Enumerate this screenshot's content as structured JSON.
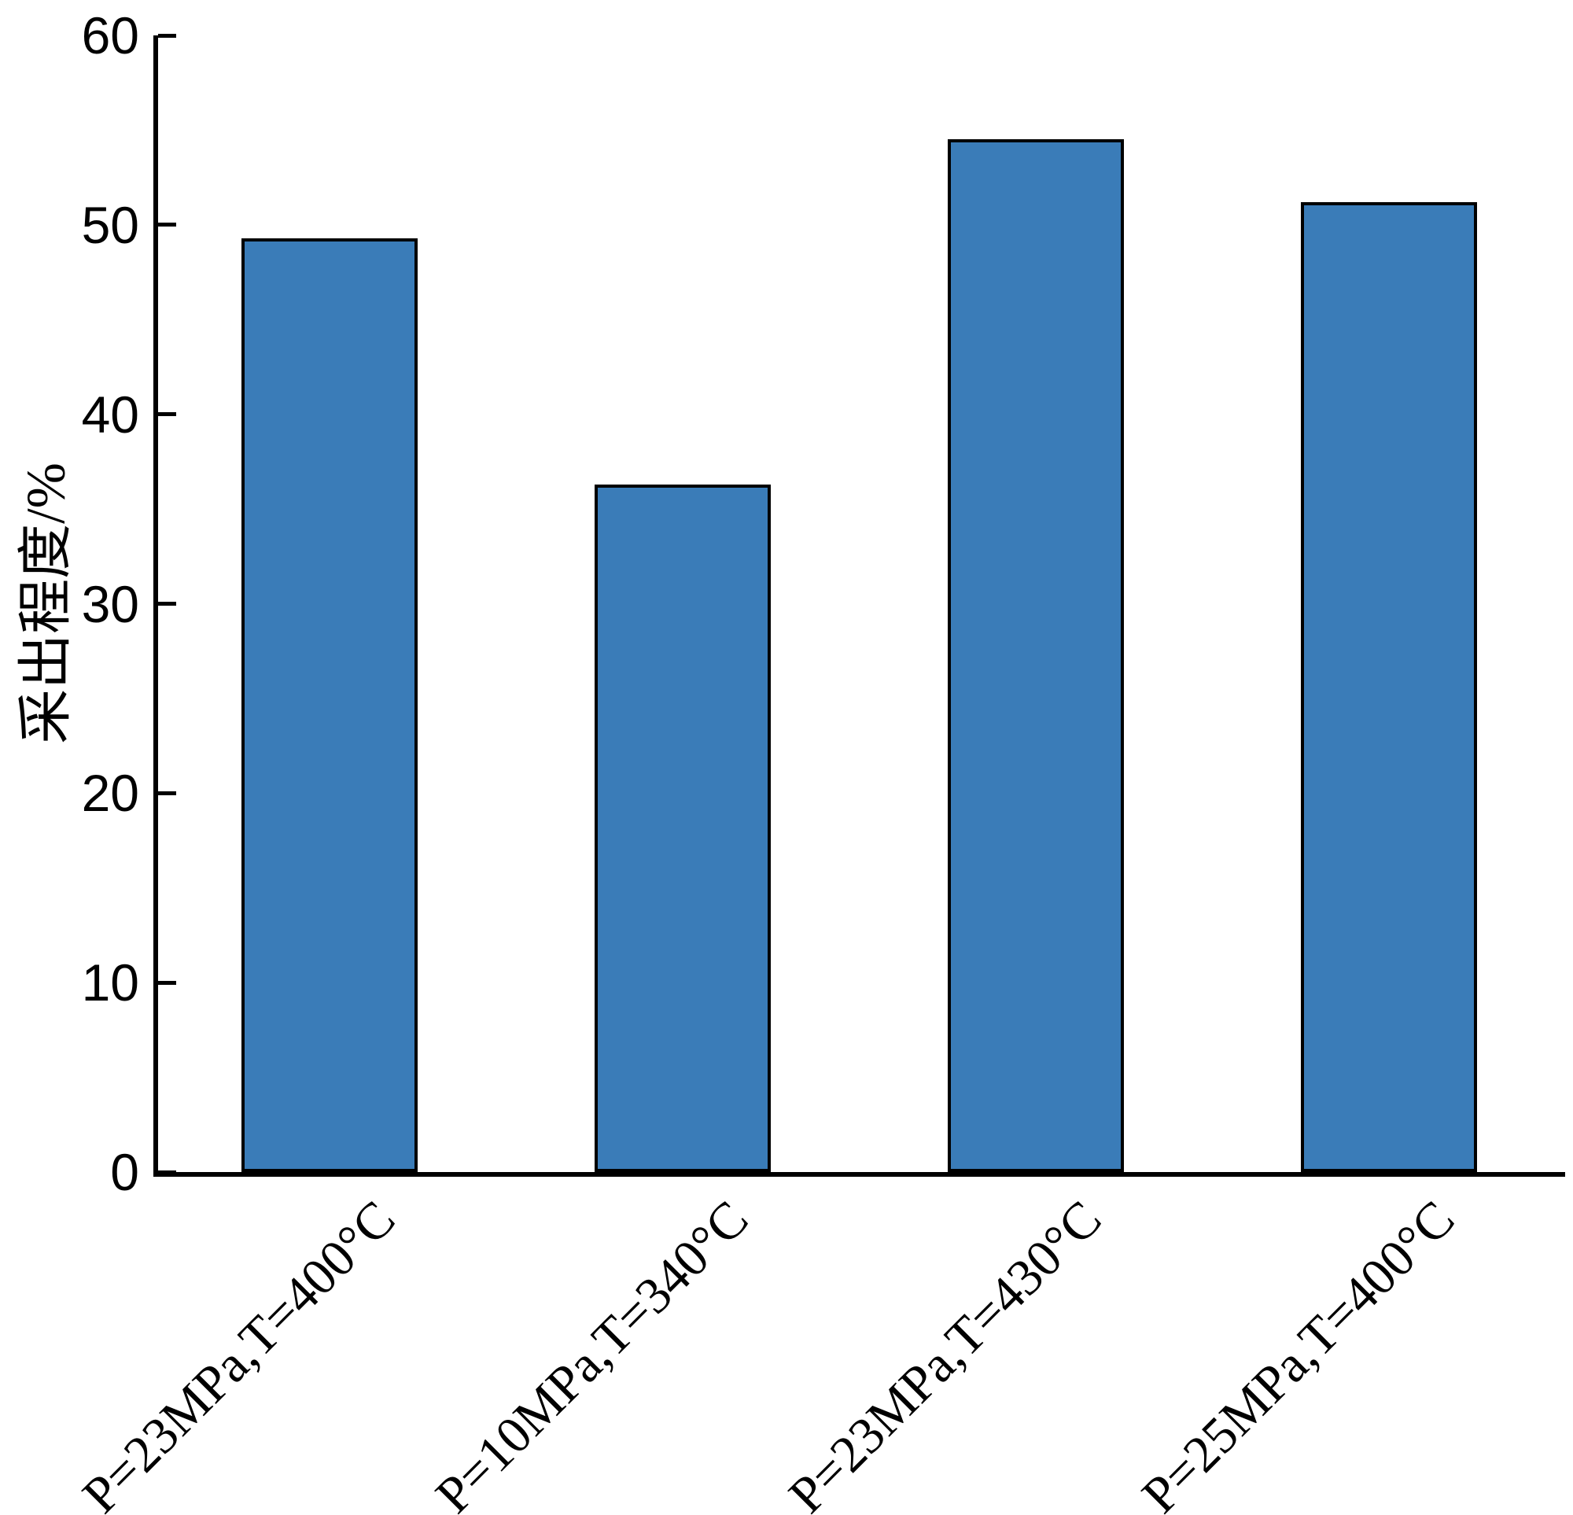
{
  "chart_data": {
    "type": "bar",
    "title": "",
    "xlabel": "",
    "ylabel": "采出程度/%",
    "ylim": [
      0,
      60
    ],
    "yticks": [
      0,
      10,
      20,
      30,
      40,
      50,
      60
    ],
    "categories": [
      "P=23MPa,T=400°C",
      "P=10MPa,T=340°C",
      "P=23MPa,T=430°C",
      "P=25MPa,T=400°C"
    ],
    "values": [
      49.3,
      36.3,
      54.5,
      51.2
    ],
    "series_name": "采出程度",
    "bar_fill_color": "#3A7CB8",
    "bar_edge_color": "#000000",
    "axis_color": "#000000",
    "background_color": "#FFFFFF",
    "grid": false,
    "legend": null,
    "tick_direction": "in",
    "x_tick_label_rotation_deg": 45
  }
}
